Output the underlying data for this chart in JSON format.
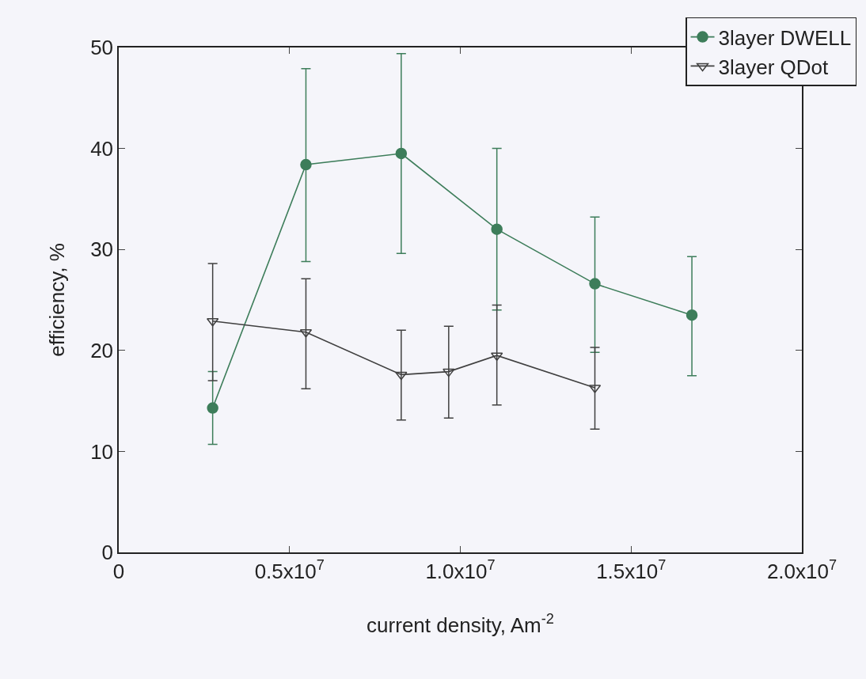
{
  "chart_data": {
    "type": "line",
    "xlabel": "current density, Am$^{-2}$",
    "ylabel": "efficiency, %",
    "xlim": [
      0,
      20000000
    ],
    "ylim": [
      0,
      50
    ],
    "xticks": [
      {
        "value": 0,
        "label": "0"
      },
      {
        "value": 5000000,
        "label": "0.5x10$^{7}$"
      },
      {
        "value": 10000000,
        "label": "1.0x10$^{7}$"
      },
      {
        "value": 15000000,
        "label": "1.5x10$^{7}$"
      },
      {
        "value": 20000000,
        "label": "2.0x10$^{7}$"
      }
    ],
    "yticks": [
      0,
      10,
      20,
      30,
      40,
      50
    ],
    "grid": false,
    "legend": "top right",
    "line_style": "solid",
    "series": [
      {
        "name": "3layer DWELL",
        "color": "#3d7d5a",
        "marker": "circle",
        "x": [
          2750000,
          5480000,
          8270000,
          11070000,
          13940000,
          16780000
        ],
        "values": [
          14.3,
          38.4,
          39.5,
          32.0,
          26.6,
          23.5
        ],
        "errors": [
          [
            10.7,
            17.9
          ],
          [
            28.8,
            47.9
          ],
          [
            29.6,
            49.4
          ],
          [
            24.0,
            40.0
          ],
          [
            19.8,
            33.2
          ],
          [
            17.5,
            29.3
          ]
        ]
      },
      {
        "name": "3layer QDot",
        "color": "#404040",
        "marker": "triangle",
        "x": [
          2750000,
          5480000,
          8270000,
          9660000,
          11070000,
          13940000
        ],
        "values": [
          22.9,
          21.8,
          17.6,
          17.9,
          19.5,
          16.3
        ],
        "errors": [
          [
            17.0,
            28.6
          ],
          [
            16.2,
            27.1
          ],
          [
            13.1,
            22.0
          ],
          [
            13.3,
            22.4
          ],
          [
            14.6,
            24.5
          ],
          [
            12.2,
            20.3
          ]
        ]
      }
    ]
  }
}
